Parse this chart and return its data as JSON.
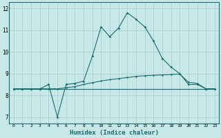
{
  "xlabel": "Humidex (Indice chaleur)",
  "bg_color": "#c8e8e8",
  "line_color": "#1a6b6b",
  "grid_color": "#a0cccc",
  "x_values": [
    0,
    1,
    2,
    3,
    4,
    5,
    6,
    7,
    8,
    9,
    10,
    11,
    12,
    13,
    14,
    15,
    16,
    17,
    18,
    19,
    20,
    21,
    22,
    23
  ],
  "line1": [
    8.3,
    8.3,
    8.3,
    8.3,
    8.5,
    7.0,
    8.5,
    8.55,
    8.65,
    9.8,
    11.15,
    10.7,
    11.1,
    11.8,
    11.5,
    11.15,
    10.5,
    9.7,
    9.3,
    9.0,
    8.5,
    8.5,
    8.3,
    8.3
  ],
  "line2": [
    8.3,
    8.3,
    8.3,
    8.3,
    8.3,
    8.3,
    8.35,
    8.4,
    8.5,
    8.58,
    8.66,
    8.72,
    8.77,
    8.82,
    8.87,
    8.9,
    8.92,
    8.94,
    8.96,
    8.98,
    8.6,
    8.55,
    8.3,
    8.3
  ],
  "line3": [
    8.3,
    8.3,
    8.3,
    8.3,
    8.3,
    8.3,
    8.3,
    8.3,
    8.3,
    8.3,
    8.3,
    8.3,
    8.3,
    8.3,
    8.3,
    8.3,
    8.3,
    8.3,
    8.3,
    8.3,
    8.3,
    8.3,
    8.3,
    8.3
  ],
  "ylim": [
    6.7,
    12.3
  ],
  "yticks": [
    7,
    8,
    9,
    10,
    11,
    12
  ],
  "xticks": [
    0,
    1,
    2,
    3,
    4,
    5,
    6,
    7,
    8,
    9,
    10,
    11,
    12,
    13,
    14,
    15,
    16,
    17,
    18,
    19,
    20,
    21,
    22,
    23
  ]
}
